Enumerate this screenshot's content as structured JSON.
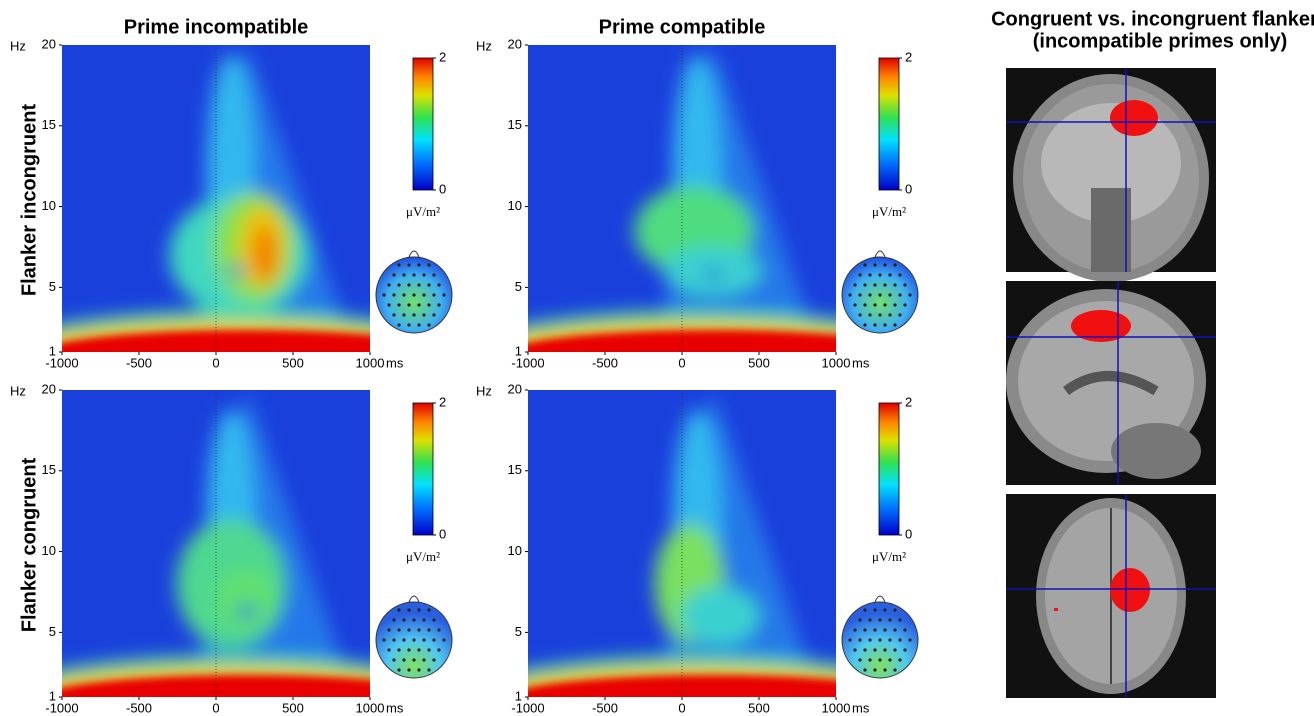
{
  "column_titles": [
    "Prime incompatible",
    "Prime compatible"
  ],
  "row_labels": [
    "Flanker incongruent",
    "Flanker congruent"
  ],
  "chart_data": [
    {
      "type": "heatmap",
      "xlim": [
        -1000,
        1000
      ],
      "xticks": [
        -1000,
        -500,
        0,
        500,
        1000
      ],
      "x_unit": "ms",
      "ylim": [
        1,
        20
      ],
      "yticks": [
        1,
        5,
        10,
        15,
        20
      ],
      "y_unit": "Hz",
      "colorbar": {
        "lim": [
          0,
          2
        ],
        "ticks": [
          0,
          2
        ],
        "unit": "μV/m²"
      }
    },
    {
      "type": "heatmap",
      "xlim": [
        -1000,
        1000
      ],
      "xticks": [
        -1000,
        -500,
        0,
        500,
        1000
      ],
      "x_unit": "ms",
      "ylim": [
        1,
        20
      ],
      "yticks": [
        1,
        5,
        10,
        15,
        20
      ],
      "y_unit": "Hz",
      "colorbar": {
        "lim": [
          0,
          2
        ],
        "ticks": [
          0,
          2
        ],
        "unit": "μV/m²"
      }
    },
    {
      "type": "heatmap",
      "xlim": [
        -1000,
        1000
      ],
      "xticks": [
        -1000,
        -500,
        0,
        500,
        1000
      ],
      "x_unit": "ms",
      "ylim": [
        1,
        20
      ],
      "yticks": [
        1,
        5,
        10,
        15,
        20
      ],
      "y_unit": "Hz",
      "colorbar": {
        "lim": [
          0,
          2
        ],
        "ticks": [
          0,
          2
        ],
        "unit": "μV/m²"
      }
    },
    {
      "type": "heatmap",
      "xlim": [
        -1000,
        1000
      ],
      "xticks": [
        -1000,
        -500,
        0,
        500,
        1000
      ],
      "x_unit": "ms",
      "ylim": [
        1,
        20
      ],
      "yticks": [
        1,
        5,
        10,
        15,
        20
      ],
      "y_unit": "Hz",
      "colorbar": {
        "lim": [
          0,
          2
        ],
        "ticks": [
          0,
          2
        ],
        "unit": "μV/m²"
      }
    }
  ],
  "mri": {
    "title": [
      "Congruent vs. incongruent flankers",
      "(incompatible primes only)"
    ]
  }
}
